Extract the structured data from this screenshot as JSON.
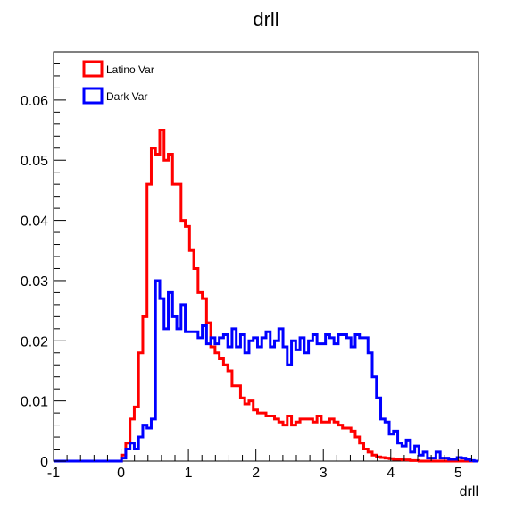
{
  "chart_data": {
    "type": "line",
    "title": "drll",
    "xlabel": "drll",
    "ylabel": "",
    "xlim": [
      -1,
      5.3
    ],
    "ylim": [
      0,
      0.068
    ],
    "x_ticks": [
      "-1",
      "0",
      "1",
      "2",
      "3",
      "4",
      "5"
    ],
    "y_ticks": [
      "0",
      "0.01",
      "0.02",
      "0.03",
      "0.04",
      "0.05",
      "0.06"
    ],
    "x_tick_values": [
      -1,
      0,
      1,
      2,
      3,
      4,
      5
    ],
    "y_tick_values": [
      0,
      0.01,
      0.02,
      0.03,
      0.04,
      0.05,
      0.06
    ],
    "bin_start": -1,
    "bin_width": 0.063,
    "legend_position": "top-left",
    "grid": false,
    "series": [
      {
        "name": "Latino Var",
        "color": "#ff0000",
        "values": [
          0,
          0,
          0,
          0,
          0,
          0,
          0,
          0,
          0,
          0,
          0,
          0,
          0,
          0,
          0,
          0,
          0.001,
          0.003,
          0.007,
          0.009,
          0.018,
          0.024,
          0.046,
          0.052,
          0.051,
          0.055,
          0.05,
          0.051,
          0.046,
          0.046,
          0.04,
          0.039,
          0.035,
          0.032,
          0.028,
          0.027,
          0.023,
          0.019,
          0.018,
          0.017,
          0.016,
          0.015,
          0.0125,
          0.0125,
          0.0105,
          0.0095,
          0.01,
          0.0085,
          0.008,
          0.008,
          0.0075,
          0.0075,
          0.007,
          0.0065,
          0.006,
          0.0075,
          0.006,
          0.0065,
          0.007,
          0.007,
          0.007,
          0.0065,
          0.0075,
          0.0065,
          0.0065,
          0.007,
          0.0065,
          0.006,
          0.0055,
          0.0055,
          0.005,
          0.004,
          0.003,
          0.002,
          0.0015,
          0.001,
          0.0007,
          0.0006,
          0.0005,
          0.0004,
          0.0003,
          0.0003,
          0.0002,
          0.0002,
          0.0001,
          0.0001,
          0,
          0,
          0,
          0,
          0,
          0,
          0,
          0,
          0,
          0,
          0,
          0,
          0,
          0
        ]
      },
      {
        "name": "Dark Var",
        "color": "#0000ff",
        "values": [
          0,
          0,
          0,
          0,
          0,
          0,
          0,
          0,
          0,
          0,
          0,
          0,
          0,
          0,
          0,
          0,
          0.0005,
          0.002,
          0.003,
          0.002,
          0.004,
          0.006,
          0.0055,
          0.007,
          0.03,
          0.027,
          0.022,
          0.028,
          0.024,
          0.022,
          0.026,
          0.0215,
          0.0215,
          0.0215,
          0.0205,
          0.0225,
          0.0195,
          0.0205,
          0.0195,
          0.0205,
          0.021,
          0.019,
          0.022,
          0.019,
          0.021,
          0.018,
          0.02,
          0.0205,
          0.019,
          0.0205,
          0.0215,
          0.019,
          0.02,
          0.022,
          0.019,
          0.016,
          0.02,
          0.0185,
          0.0205,
          0.018,
          0.02,
          0.021,
          0.0195,
          0.0195,
          0.021,
          0.0205,
          0.0195,
          0.021,
          0.021,
          0.0205,
          0.019,
          0.021,
          0.0205,
          0.0205,
          0.018,
          0.014,
          0.0105,
          0.007,
          0.0065,
          0.0045,
          0.005,
          0.003,
          0.0025,
          0.0035,
          0.0015,
          0.0025,
          0.001,
          0.0015,
          0.0005,
          0.0005,
          0.0015,
          0.0005,
          0.0005,
          0.0003,
          0.0003,
          0.0006,
          0.0005,
          0.0003,
          0.0001,
          0
        ]
      }
    ]
  }
}
